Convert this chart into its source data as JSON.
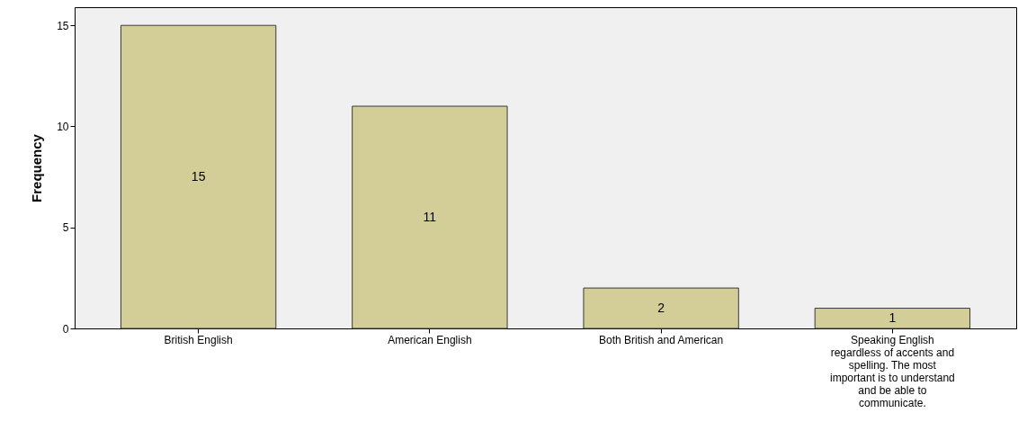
{
  "chart_data": {
    "type": "bar",
    "ylabel": "Frequency",
    "categories": [
      "British English",
      "American English",
      "Both British and American",
      "Speaking English regardless of accents and spelling. The most important is to understand and be able to communicate."
    ],
    "values": [
      15,
      11,
      2,
      1
    ],
    "color": "#d3ce98",
    "ylim": [
      0,
      15.9
    ],
    "yticks": [
      0,
      5,
      10,
      15
    ],
    "grid": false,
    "data_labels": true
  }
}
